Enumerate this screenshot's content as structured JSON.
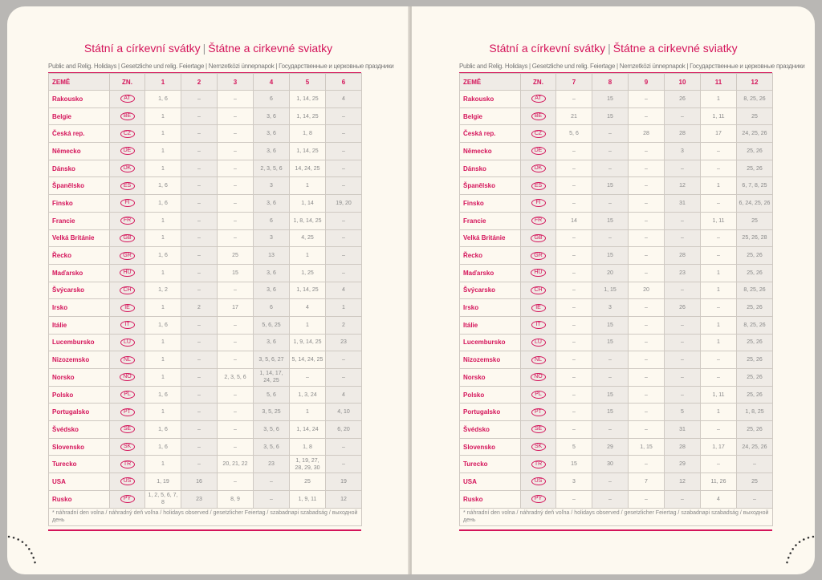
{
  "title_cz": "Státní a církevní svátky",
  "title_sk": "Štátne a cirkevné sviatky",
  "subtitle": "Public and Relig. Holidays | Gesetzliche und relig. Feiertage | Nemzetközi ünnepnapok | Государственные и церковные праздники",
  "headers": {
    "country": "ZEMĚ",
    "code": "ZN."
  },
  "left_months": [
    "1",
    "2",
    "3",
    "4",
    "5",
    "6"
  ],
  "right_months": [
    "7",
    "8",
    "9",
    "10",
    "11",
    "12"
  ],
  "footnote": "* náhradní den volna / náhradný deň voľna / holidays observed / gesetzlicher Feiertag / szabadnapi szabadság / выходной день",
  "accent_color": "#d4145a",
  "countries": [
    {
      "name": "Rakousko",
      "code": "AT",
      "left": [
        "1, 6",
        "–",
        "–",
        "6",
        "1, 14, 25",
        "4"
      ],
      "right": [
        "–",
        "15",
        "–",
        "26",
        "1",
        "8, 25, 26"
      ]
    },
    {
      "name": "Belgie",
      "code": "BE",
      "left": [
        "1",
        "–",
        "–",
        "3, 6",
        "1, 14, 25",
        "–"
      ],
      "right": [
        "21",
        "15",
        "–",
        "–",
        "1, 11",
        "25"
      ]
    },
    {
      "name": "Česká rep.",
      "code": "CZ",
      "left": [
        "1",
        "–",
        "–",
        "3, 6",
        "1, 8",
        "–"
      ],
      "right": [
        "5, 6",
        "–",
        "28",
        "28",
        "17",
        "24, 25, 26"
      ]
    },
    {
      "name": "Německo",
      "code": "DE",
      "left": [
        "1",
        "–",
        "–",
        "3, 6",
        "1, 14, 25",
        "–"
      ],
      "right": [
        "–",
        "–",
        "–",
        "3",
        "–",
        "25, 26"
      ]
    },
    {
      "name": "Dánsko",
      "code": "DK",
      "left": [
        "1",
        "–",
        "–",
        "2, 3, 5, 6",
        "14, 24, 25",
        "–"
      ],
      "right": [
        "–",
        "–",
        "–",
        "–",
        "–",
        "25, 26"
      ]
    },
    {
      "name": "Španělsko",
      "code": "ES",
      "left": [
        "1, 6",
        "–",
        "–",
        "3",
        "1",
        "–"
      ],
      "right": [
        "–",
        "15",
        "–",
        "12",
        "1",
        "6, 7, 8, 25"
      ]
    },
    {
      "name": "Finsko",
      "code": "FI",
      "left": [
        "1, 6",
        "–",
        "–",
        "3, 6",
        "1, 14",
        "19, 20"
      ],
      "right": [
        "–",
        "–",
        "–",
        "31",
        "–",
        "6, 24, 25, 26"
      ]
    },
    {
      "name": "Francie",
      "code": "FR",
      "left": [
        "1",
        "–",
        "–",
        "6",
        "1, 8, 14, 25",
        "–"
      ],
      "right": [
        "14",
        "15",
        "–",
        "–",
        "1, 11",
        "25"
      ]
    },
    {
      "name": "Velká Británie",
      "code": "GB",
      "left": [
        "1",
        "–",
        "–",
        "3",
        "4, 25",
        "–"
      ],
      "right": [
        "–",
        "–",
        "–",
        "–",
        "–",
        "25, 26, 28"
      ]
    },
    {
      "name": "Řecko",
      "code": "GR",
      "left": [
        "1, 6",
        "–",
        "25",
        "13",
        "1",
        "–"
      ],
      "right": [
        "–",
        "15",
        "–",
        "28",
        "–",
        "25, 26"
      ]
    },
    {
      "name": "Maďarsko",
      "code": "HU",
      "left": [
        "1",
        "–",
        "15",
        "3, 6",
        "1, 25",
        "–"
      ],
      "right": [
        "–",
        "20",
        "–",
        "23",
        "1",
        "25, 26"
      ]
    },
    {
      "name": "Švýcarsko",
      "code": "CH",
      "left": [
        "1, 2",
        "–",
        "–",
        "3, 6",
        "1, 14, 25",
        "4"
      ],
      "right": [
        "–",
        "1, 15",
        "20",
        "–",
        "1",
        "8, 25, 26"
      ]
    },
    {
      "name": "Irsko",
      "code": "IE",
      "left": [
        "1",
        "2",
        "17",
        "6",
        "4",
        "1"
      ],
      "right": [
        "–",
        "3",
        "–",
        "26",
        "–",
        "25, 26"
      ]
    },
    {
      "name": "Itálie",
      "code": "IT",
      "left": [
        "1, 6",
        "–",
        "–",
        "5, 6, 25",
        "1",
        "2"
      ],
      "right": [
        "–",
        "15",
        "–",
        "–",
        "1",
        "8, 25, 26"
      ]
    },
    {
      "name": "Lucembursko",
      "code": "LU",
      "left": [
        "1",
        "–",
        "–",
        "3, 6",
        "1, 9, 14, 25",
        "23"
      ],
      "right": [
        "–",
        "15",
        "–",
        "–",
        "1",
        "25, 26"
      ]
    },
    {
      "name": "Nizozemsko",
      "code": "NL",
      "left": [
        "1",
        "–",
        "–",
        "3, 5, 6, 27",
        "5, 14, 24, 25",
        "–"
      ],
      "right": [
        "–",
        "–",
        "–",
        "–",
        "–",
        "25, 26"
      ]
    },
    {
      "name": "Norsko",
      "code": "NO",
      "left": [
        "1",
        "–",
        "2, 3, 5, 6",
        "1, 14, 17, 24, 25",
        "–",
        "–"
      ],
      "right": [
        "–",
        "–",
        "–",
        "–",
        "–",
        "25, 26"
      ]
    },
    {
      "name": "Polsko",
      "code": "PL",
      "left": [
        "1, 6",
        "–",
        "–",
        "5, 6",
        "1, 3, 24",
        "4"
      ],
      "right": [
        "–",
        "15",
        "–",
        "–",
        "1, 11",
        "25, 26"
      ]
    },
    {
      "name": "Portugalsko",
      "code": "PT",
      "left": [
        "1",
        "–",
        "–",
        "3, 5, 25",
        "1",
        "4, 10"
      ],
      "right": [
        "–",
        "15",
        "–",
        "5",
        "1",
        "1, 8, 25"
      ]
    },
    {
      "name": "Švédsko",
      "code": "SE",
      "left": [
        "1, 6",
        "–",
        "–",
        "3, 5, 6",
        "1, 14, 24",
        "6, 20"
      ],
      "right": [
        "–",
        "–",
        "–",
        "31",
        "–",
        "25, 26"
      ]
    },
    {
      "name": "Slovensko",
      "code": "SK",
      "left": [
        "1, 6",
        "–",
        "–",
        "3, 5, 6",
        "1, 8",
        "–"
      ],
      "right": [
        "5",
        "29",
        "1, 15",
        "28",
        "1, 17",
        "24, 25, 26"
      ]
    },
    {
      "name": "Turecko",
      "code": "TR",
      "left": [
        "1",
        "–",
        "20, 21, 22",
        "23",
        "1, 19, 27, 28, 29, 30",
        "–"
      ],
      "right": [
        "15",
        "30",
        "–",
        "29",
        "–",
        "–"
      ]
    },
    {
      "name": "USA",
      "code": "US",
      "left": [
        "1, 19",
        "16",
        "–",
        "–",
        "25",
        "19"
      ],
      "right": [
        "3",
        "–",
        "7",
        "12",
        "11, 26",
        "25"
      ]
    },
    {
      "name": "Rusko",
      "code": "PY",
      "left": [
        "1, 2, 5, 6, 7, 8",
        "23",
        "8, 9",
        "–",
        "1, 9, 11",
        "12"
      ],
      "right": [
        "–",
        "–",
        "–",
        "–",
        "4",
        "–"
      ]
    }
  ]
}
